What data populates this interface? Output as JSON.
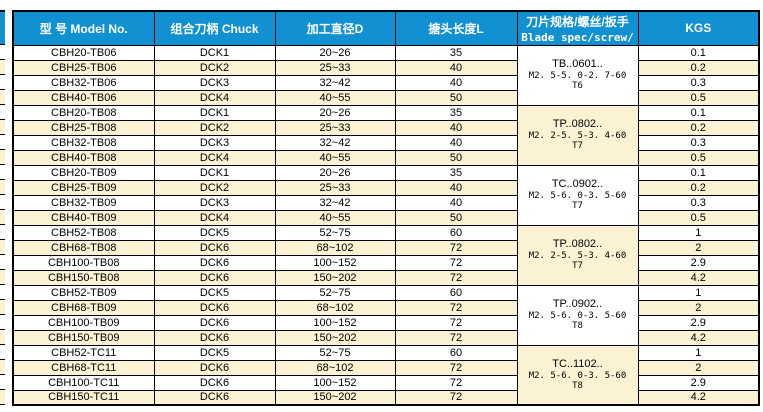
{
  "colors": {
    "header_bg": "#1190D2",
    "stripe_bg": "#FBF1D3",
    "border": "#000000",
    "header_text": "#FFFFFF"
  },
  "table": {
    "headers": {
      "model": "型 号 Model No.",
      "chuck": "组合刀柄 Chuck",
      "diameter": "加工直径D",
      "length": "搪头长度L",
      "blade_cn": "刀片规格/螺丝/扳手",
      "blade_en": "Blade spec/screw/",
      "kgs": "KGS"
    },
    "rows": [
      {
        "model": "CBH20-TB06",
        "chuck": "DCK1",
        "diameter": "20~26",
        "length": "35",
        "kgs": "0.1"
      },
      {
        "model": "CBH25-TB06",
        "chuck": "DCK2",
        "diameter": "25~33",
        "length": "40",
        "kgs": "0.2"
      },
      {
        "model": "CBH32-TB06",
        "chuck": "DCK3",
        "diameter": "32~42",
        "length": "40",
        "kgs": "0.3"
      },
      {
        "model": "CBH40-TB06",
        "chuck": "DCK4",
        "diameter": "40~55",
        "length": "50",
        "kgs": "0.5"
      },
      {
        "model": "CBH20-TB08",
        "chuck": "DCK1",
        "diameter": "20~26",
        "length": "35",
        "kgs": "0.1"
      },
      {
        "model": "CBH25-TB08",
        "chuck": "DCK2",
        "diameter": "25~33",
        "length": "40",
        "kgs": "0.2"
      },
      {
        "model": "CBH32-TB08",
        "chuck": "DCK3",
        "diameter": "32~42",
        "length": "40",
        "kgs": "0.3"
      },
      {
        "model": "CBH40-TB08",
        "chuck": "DCK4",
        "diameter": "40~55",
        "length": "50",
        "kgs": "0.5"
      },
      {
        "model": "CBH20-TB09",
        "chuck": "DCK1",
        "diameter": "20~26",
        "length": "35",
        "kgs": "0.1"
      },
      {
        "model": "CBH25-TB09",
        "chuck": "DCK2",
        "diameter": "25~33",
        "length": "40",
        "kgs": "0.2"
      },
      {
        "model": "CBH32-TB09",
        "chuck": "DCK3",
        "diameter": "32~42",
        "length": "40",
        "kgs": "0.3"
      },
      {
        "model": "CBH40-TB09",
        "chuck": "DCK4",
        "diameter": "40~55",
        "length": "50",
        "kgs": "0.5"
      },
      {
        "model": "CBH52-TB08",
        "chuck": "DCK5",
        "diameter": "52~75",
        "length": "60",
        "kgs": "1"
      },
      {
        "model": "CBH68-TB08",
        "chuck": "DCK6",
        "diameter": "68~102",
        "length": "72",
        "kgs": "2"
      },
      {
        "model": "CBH100-TB08",
        "chuck": "DCK6",
        "diameter": "100~152",
        "length": "72",
        "kgs": "2.9"
      },
      {
        "model": "CBH150-TB08",
        "chuck": "DCK6",
        "diameter": "150~202",
        "length": "72",
        "kgs": "4.2"
      },
      {
        "model": "CBH52-TB09",
        "chuck": "DCK5",
        "diameter": "52~75",
        "length": "60",
        "kgs": "1"
      },
      {
        "model": "CBH68-TB09",
        "chuck": "DCK6",
        "diameter": "68~102",
        "length": "72",
        "kgs": "2"
      },
      {
        "model": "CBH100-TB09",
        "chuck": "DCK6",
        "diameter": "100~152",
        "length": "72",
        "kgs": "2.9"
      },
      {
        "model": "CBH150-TB09",
        "chuck": "DCK6",
        "diameter": "150~202",
        "length": "72",
        "kgs": "4.2"
      },
      {
        "model": "CBH52-TC11",
        "chuck": "DCK5",
        "diameter": "52~75",
        "length": "60",
        "kgs": "1"
      },
      {
        "model": "CBH68-TC11",
        "chuck": "DCK6",
        "diameter": "68~102",
        "length": "72",
        "kgs": "2"
      },
      {
        "model": "CBH100-TC11",
        "chuck": "DCK6",
        "diameter": "100~152",
        "length": "72",
        "kgs": "2.9"
      },
      {
        "model": "CBH150-TC11",
        "chuck": "DCK6",
        "diameter": "150~202",
        "length": "72",
        "kgs": "4.2"
      }
    ],
    "blade_groups": [
      {
        "code": "TB..0601..",
        "screw": "M2. 5-5. 0-2. 7-60",
        "wrench": "T6"
      },
      {
        "code": "TP..0802..",
        "screw": "M2. 2-5. 5-3. 4-60",
        "wrench": "T7"
      },
      {
        "code": "TC..0902..",
        "screw": "M2. 5-6. 0-3. 5-60",
        "wrench": "T7"
      },
      {
        "code": "TP..0802..",
        "screw": "M2. 2-5. 5-3. 4-60",
        "wrench": "T7"
      },
      {
        "code": "TP..0902..",
        "screw": "M2. 5-6. 0-3. 5-60",
        "wrench": "T8"
      },
      {
        "code": "TC..1102..",
        "screw": "M2. 5-6. 0-3. 5-60",
        "wrench": "T8"
      }
    ]
  }
}
